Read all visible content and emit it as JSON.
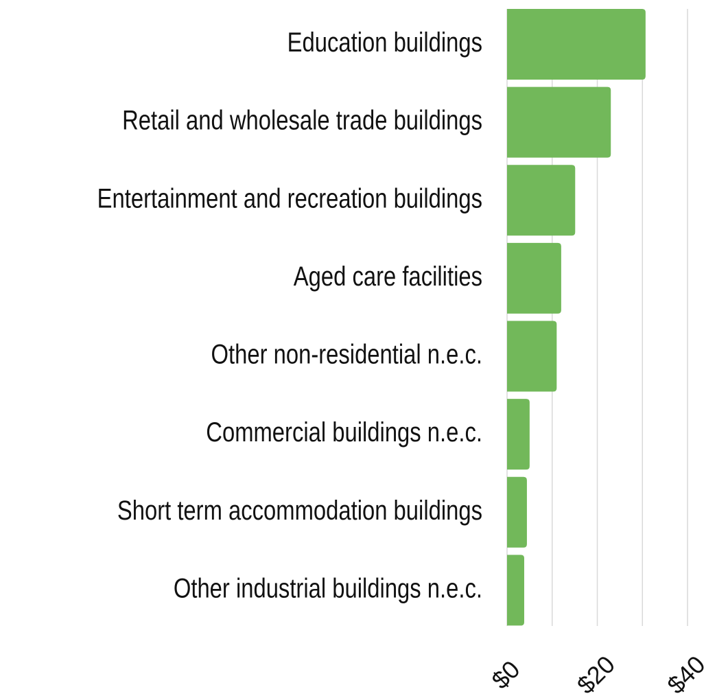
{
  "chart_data": {
    "type": "barh",
    "categories": [
      "Education buildings",
      "Retail and wholesale trade buildings",
      "Entertainment and recreation buildings",
      "Aged care facilities",
      "Other non-residential n.e.c.",
      "Commercial buildings n.e.c.",
      "Short term accommodation buildings",
      "Other industrial buildings n.e.c."
    ],
    "values": [
      30.7,
      23.0,
      15.1,
      12.0,
      11.0,
      5.0,
      4.4,
      3.8
    ],
    "color": "#72b85a",
    "xlim": [
      0,
      40
    ],
    "xticks": [
      {
        "value": 0,
        "label": "$0"
      },
      {
        "value": 20,
        "label": "$20"
      },
      {
        "value": 40,
        "label": "$40"
      }
    ],
    "grid_xticks": [
      0,
      10,
      20,
      30,
      40
    ],
    "grid": true
  }
}
